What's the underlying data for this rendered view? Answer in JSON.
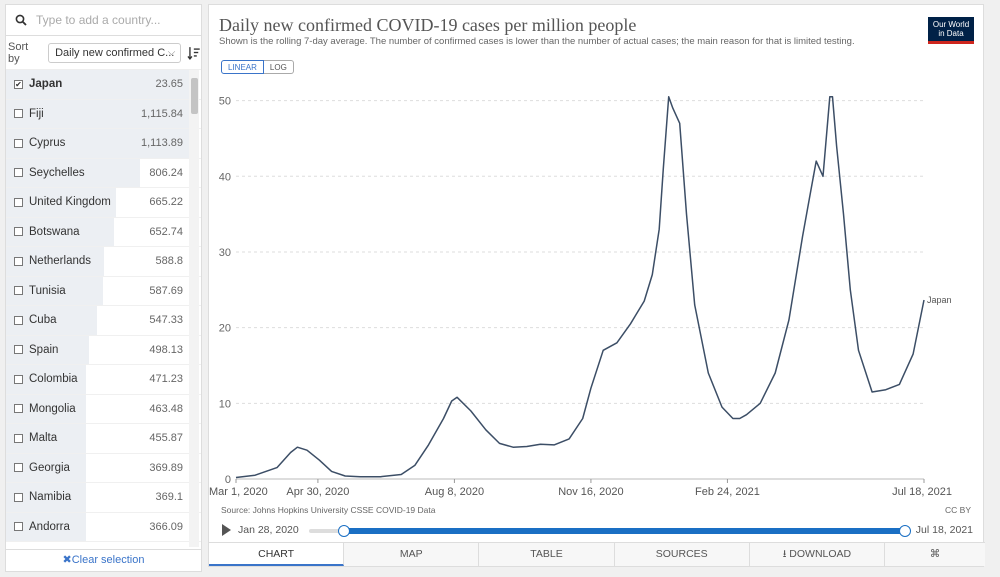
{
  "search": {
    "placeholder": "Type to add a country..."
  },
  "sort": {
    "label": "Sort by",
    "selected": "Daily new confirmed C..."
  },
  "countries": [
    {
      "name": "Japan",
      "value": "23.65",
      "checked": true
    },
    {
      "name": "Fiji",
      "value": "1,115.84",
      "checked": false
    },
    {
      "name": "Cyprus",
      "value": "1,113.89",
      "checked": false
    },
    {
      "name": "Seychelles",
      "value": "806.24",
      "checked": false
    },
    {
      "name": "United Kingdom",
      "value": "665.22",
      "checked": false
    },
    {
      "name": "Botswana",
      "value": "652.74",
      "checked": false
    },
    {
      "name": "Netherlands",
      "value": "588.8",
      "checked": false
    },
    {
      "name": "Tunisia",
      "value": "587.69",
      "checked": false
    },
    {
      "name": "Cuba",
      "value": "547.33",
      "checked": false
    },
    {
      "name": "Spain",
      "value": "498.13",
      "checked": false
    },
    {
      "name": "Colombia",
      "value": "471.23",
      "checked": false
    },
    {
      "name": "Mongolia",
      "value": "463.48",
      "checked": false
    },
    {
      "name": "Malta",
      "value": "455.87",
      "checked": false
    },
    {
      "name": "Georgia",
      "value": "369.89",
      "checked": false
    },
    {
      "name": "Namibia",
      "value": "369.1",
      "checked": false
    },
    {
      "name": "Andorra",
      "value": "366.09",
      "checked": false
    }
  ],
  "clear_label": "Clear selection",
  "scale": {
    "linear": "LINEAR",
    "log": "LOG"
  },
  "logo": {
    "line1": "Our World",
    "line2": "in Data"
  },
  "source": "Source: Johns Hopkins University CSSE COVID-19 Data",
  "license": "CC BY",
  "timeline": {
    "start": "Jan 28, 2020",
    "end": "Jul 18, 2021"
  },
  "tabs": [
    "CHART",
    "MAP",
    "TABLE",
    "SOURCES",
    "DOWNLOAD"
  ],
  "icons": {
    "search": "search-icon",
    "sort": "sort-desc-icon",
    "play": "play-icon",
    "download": "download-icon",
    "share": "share-icon",
    "clear": "close-icon"
  },
  "colors": {
    "line": "#3c4e66",
    "accent": "#1a6fc4",
    "logo_bg": "#002147",
    "logo_stripe": "#ce261e"
  },
  "chart_data": {
    "type": "line",
    "title": "Daily new confirmed COVID-19 cases per million people",
    "subtitle": "Shown is the rolling 7-day average. The number of confirmed cases is lower than the number of actual cases; the main reason for that is limited testing.",
    "x_tick_labels": [
      "Mar 1, 2020",
      "Apr 30, 2020",
      "Aug 8, 2020",
      "Nov 16, 2020",
      "Feb 24, 2021",
      "Jul 18, 2021"
    ],
    "x_ticks": [
      "2020-03-01",
      "2020-04-30",
      "2020-08-08",
      "2020-11-16",
      "2021-02-24",
      "2021-07-18"
    ],
    "y_ticks": [
      0,
      10,
      20,
      30,
      40,
      50
    ],
    "ylim": [
      0,
      51
    ],
    "grid": "horizontal",
    "series": [
      {
        "name": "Japan",
        "x": [
          "2020-03-01",
          "2020-03-15",
          "2020-03-31",
          "2020-04-10",
          "2020-04-15",
          "2020-04-22",
          "2020-05-01",
          "2020-05-10",
          "2020-05-20",
          "2020-05-31",
          "2020-06-15",
          "2020-06-30",
          "2020-07-10",
          "2020-07-20",
          "2020-07-31",
          "2020-08-06",
          "2020-08-10",
          "2020-08-20",
          "2020-08-31",
          "2020-09-10",
          "2020-09-20",
          "2020-09-30",
          "2020-10-10",
          "2020-10-20",
          "2020-10-31",
          "2020-11-10",
          "2020-11-16",
          "2020-11-25",
          "2020-12-05",
          "2020-12-15",
          "2020-12-25",
          "2020-12-31",
          "2021-01-05",
          "2021-01-08",
          "2021-01-12",
          "2021-01-15",
          "2021-01-20",
          "2021-01-25",
          "2021-01-31",
          "2021-02-10",
          "2021-02-20",
          "2021-02-28",
          "2021-03-05",
          "2021-03-10",
          "2021-03-20",
          "2021-03-31",
          "2021-04-10",
          "2021-04-20",
          "2021-04-25",
          "2021-04-30",
          "2021-05-05",
          "2021-05-10",
          "2021-05-12",
          "2021-05-15",
          "2021-05-20",
          "2021-05-25",
          "2021-05-31",
          "2021-06-10",
          "2021-06-20",
          "2021-06-30",
          "2021-07-10",
          "2021-07-18"
        ],
        "y": [
          0.2,
          0.5,
          1.5,
          3.5,
          4.2,
          3.8,
          2.5,
          1.0,
          0.4,
          0.3,
          0.3,
          0.6,
          1.8,
          4.5,
          8.0,
          10.3,
          10.8,
          9.0,
          6.5,
          4.7,
          4.2,
          4.3,
          4.6,
          4.5,
          5.3,
          8.0,
          12.0,
          17.0,
          18.0,
          20.5,
          23.5,
          27.0,
          33.0,
          41.0,
          50.5,
          49.0,
          47.0,
          35.0,
          23.0,
          14.0,
          9.5,
          8.0,
          8.0,
          8.5,
          10.0,
          14.0,
          21.0,
          32.0,
          37.0,
          42.0,
          40.0,
          50.5,
          50.5,
          44.0,
          35.0,
          25.0,
          17.0,
          11.5,
          11.8,
          12.5,
          16.5,
          23.65
        ]
      }
    ]
  }
}
